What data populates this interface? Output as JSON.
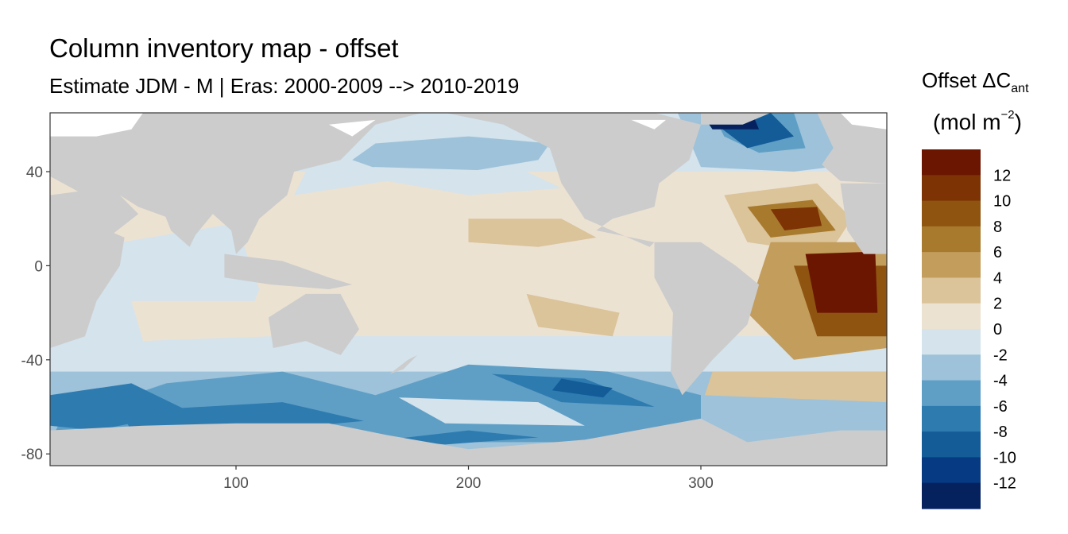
{
  "title": "Column inventory map - offset",
  "subtitle": "Estimate JDM - M | Eras: 2000-2009 --> 2010-2019",
  "legend": {
    "title_main": "Offset ΔC",
    "title_sub": "ant",
    "unit_open": "(mol m",
    "unit_exp": "−2",
    "unit_close": ")",
    "labels": [
      "12",
      "10",
      "8",
      "6",
      "4",
      "2",
      "0",
      "-2",
      "-4",
      "-6",
      "-8",
      "-10",
      "-12"
    ],
    "colors": [
      "#6b1600",
      "#7d3304",
      "#8e5410",
      "#a87a2e",
      "#c39d5c",
      "#dbc39a",
      "#ece2d2",
      "#d4e3ec",
      "#9dc2d9",
      "#5f9fc6",
      "#2e7bb0",
      "#135c98",
      "#063a82",
      "#05225f"
    ]
  },
  "chart_data": {
    "type": "heatmap",
    "x_ticks": [
      100,
      200,
      300
    ],
    "y_ticks": [
      40,
      0,
      -40,
      -80
    ],
    "xlim": [
      20,
      380
    ],
    "ylim": [
      -85,
      65
    ],
    "land_color": "#cccccc",
    "missing_color": "#ffffff",
    "color_scale_range": [
      -14,
      14
    ],
    "color_scale_step": 2
  }
}
